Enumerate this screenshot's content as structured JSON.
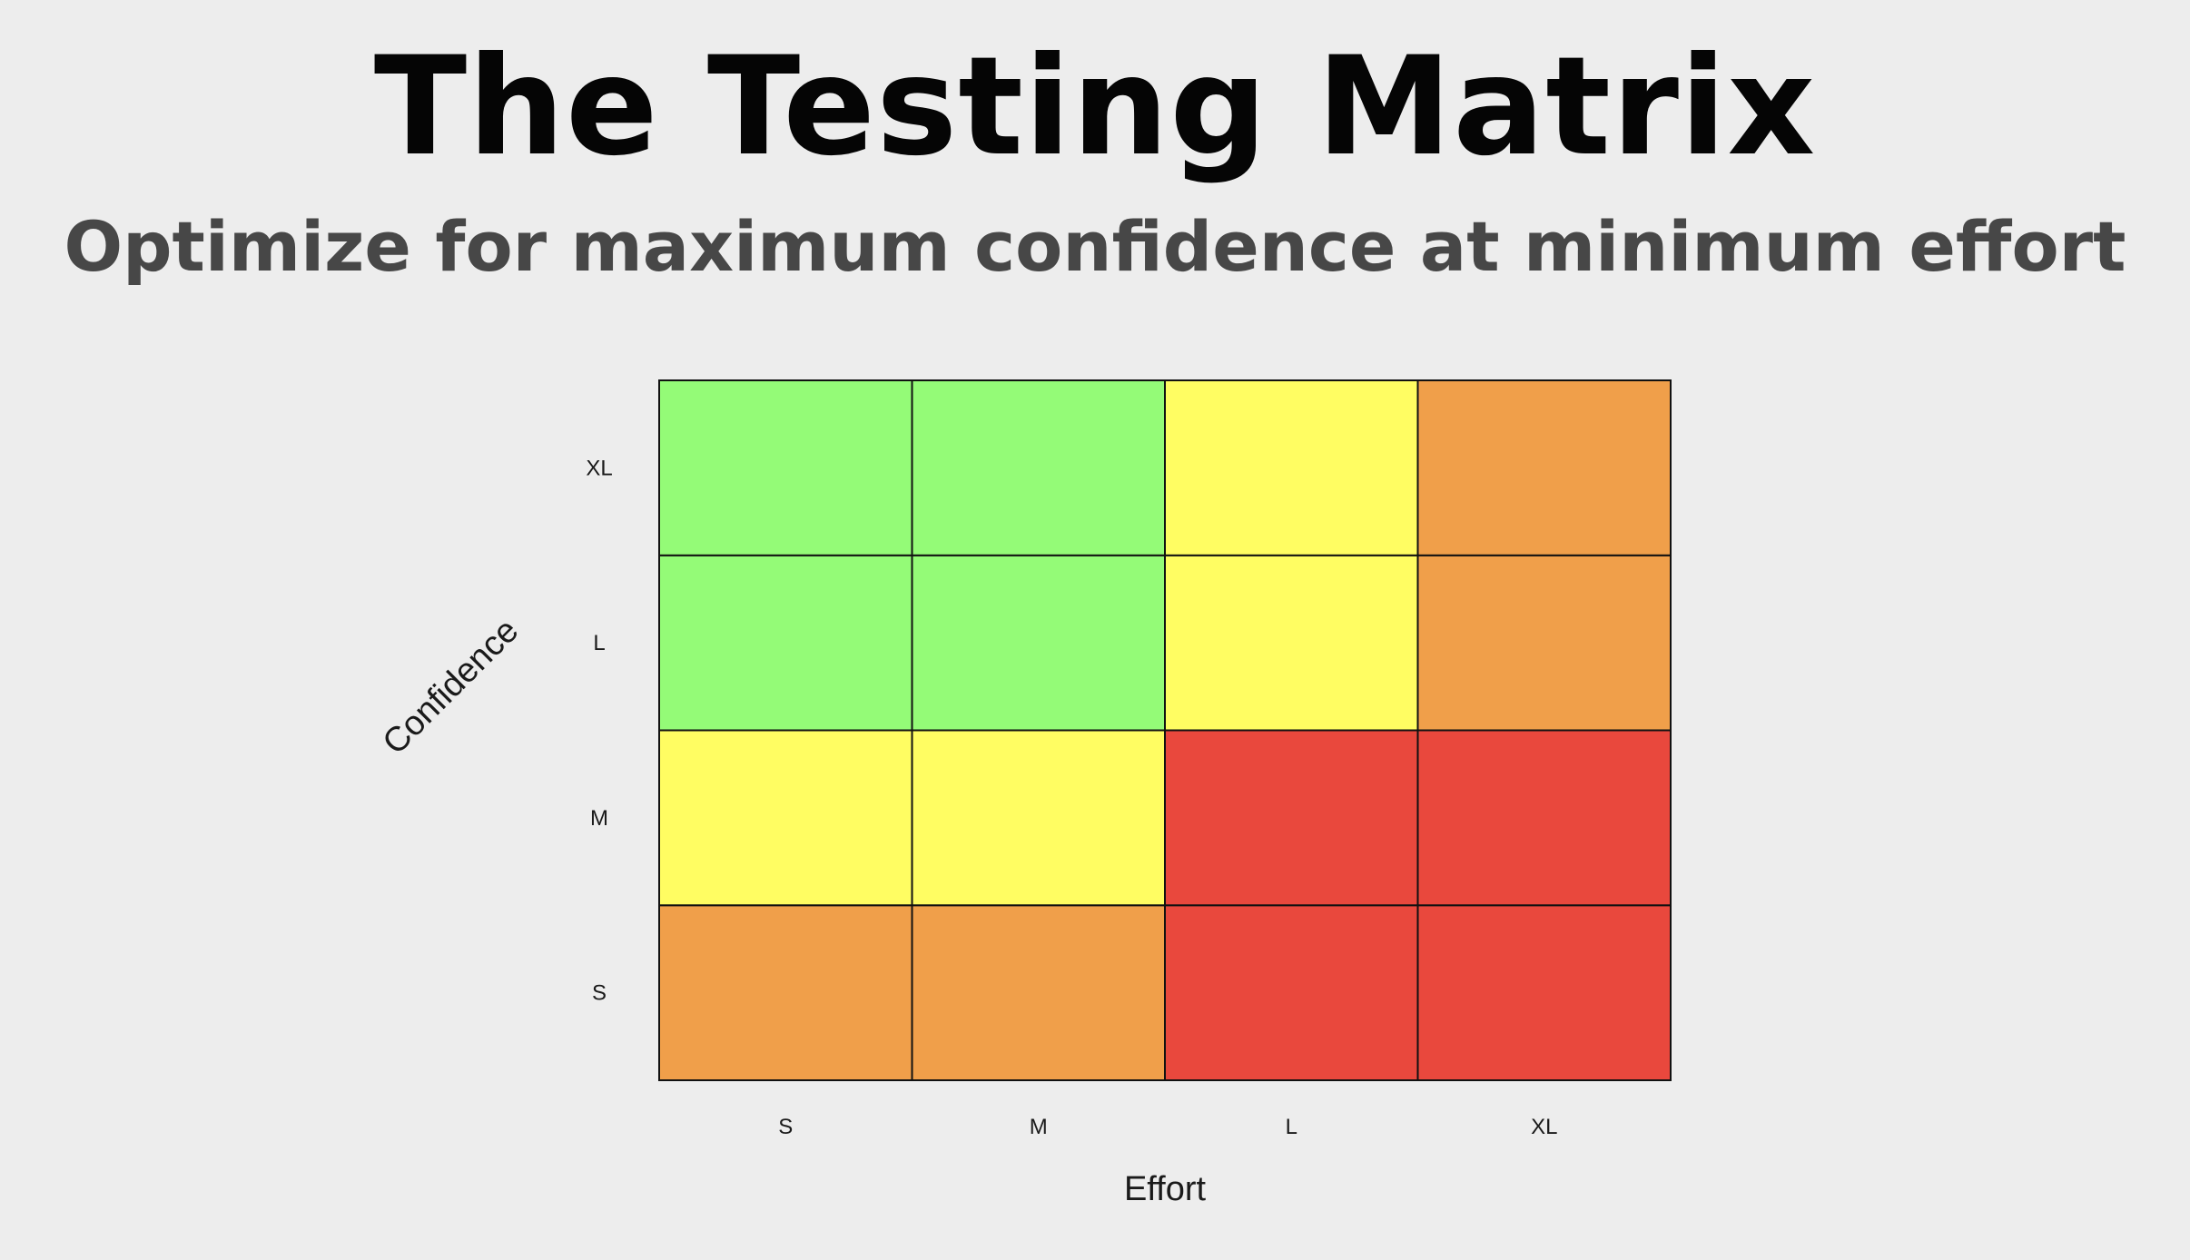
{
  "title": "The Testing Matrix",
  "subtitle": "Optimize for maximum confidence at minimum effort",
  "chart_data": {
    "type": "heatmap",
    "x_categories": [
      "S",
      "M",
      "L",
      "XL"
    ],
    "y_categories": [
      "S",
      "M",
      "L",
      "XL"
    ],
    "xlabel": "Effort",
    "ylabel": "Confidence",
    "grid": true,
    "legend": "none",
    "colors": {
      "green": "#94fb77",
      "yellow": "#fffd62",
      "orange": "#f09f4a",
      "red": "#e9483d"
    },
    "cells": [
      [
        "orange",
        "orange",
        "red",
        "red"
      ],
      [
        "yellow",
        "yellow",
        "red",
        "red"
      ],
      [
        "green",
        "green",
        "yellow",
        "orange"
      ],
      [
        "green",
        "green",
        "yellow",
        "orange"
      ]
    ]
  }
}
